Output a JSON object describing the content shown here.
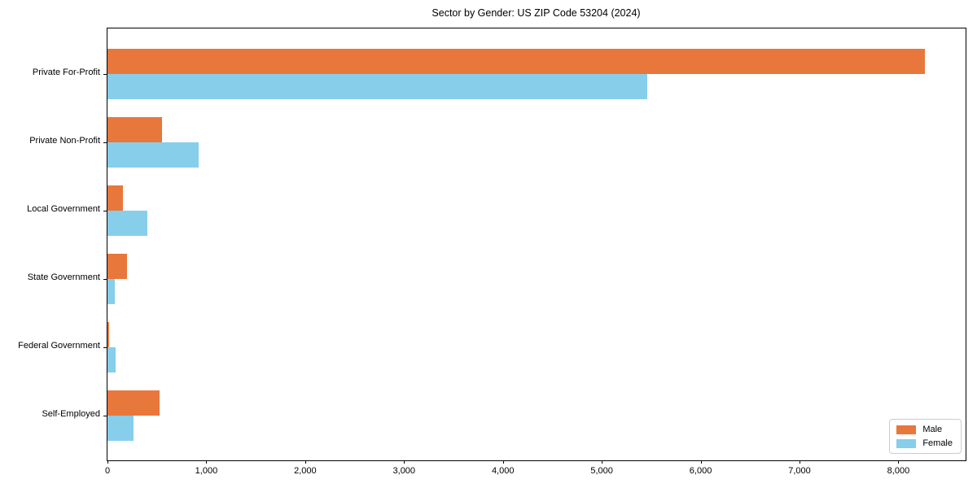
{
  "title": "Sector by Gender: US ZIP Code 53204 (2024)",
  "chart_data": {
    "type": "bar",
    "orientation": "horizontal",
    "title": "Sector by Gender: US ZIP Code 53204 (2024)",
    "xlabel": "",
    "ylabel": "",
    "categories": [
      "Private For-Profit",
      "Private Non-Profit",
      "Local Government",
      "State Government",
      "Federal Government",
      "Self-Employed"
    ],
    "series": [
      {
        "name": "Male",
        "color": "#e8773c",
        "values": [
          8270,
          550,
          160,
          200,
          20,
          530
        ]
      },
      {
        "name": "Female",
        "color": "#87ceeb",
        "values": [
          5460,
          920,
          400,
          70,
          80,
          260
        ]
      }
    ],
    "xlim": [
      0,
      8680
    ],
    "xticks": [
      0,
      1000,
      2000,
      3000,
      4000,
      5000,
      6000,
      7000,
      8000
    ],
    "xtick_labels": [
      "0",
      "1,000",
      "2,000",
      "3,000",
      "4,000",
      "5,000",
      "6,000",
      "7,000",
      "8,000"
    ],
    "grid": false,
    "legend": {
      "position": "lower right",
      "entries": [
        "Male",
        "Female"
      ]
    }
  }
}
